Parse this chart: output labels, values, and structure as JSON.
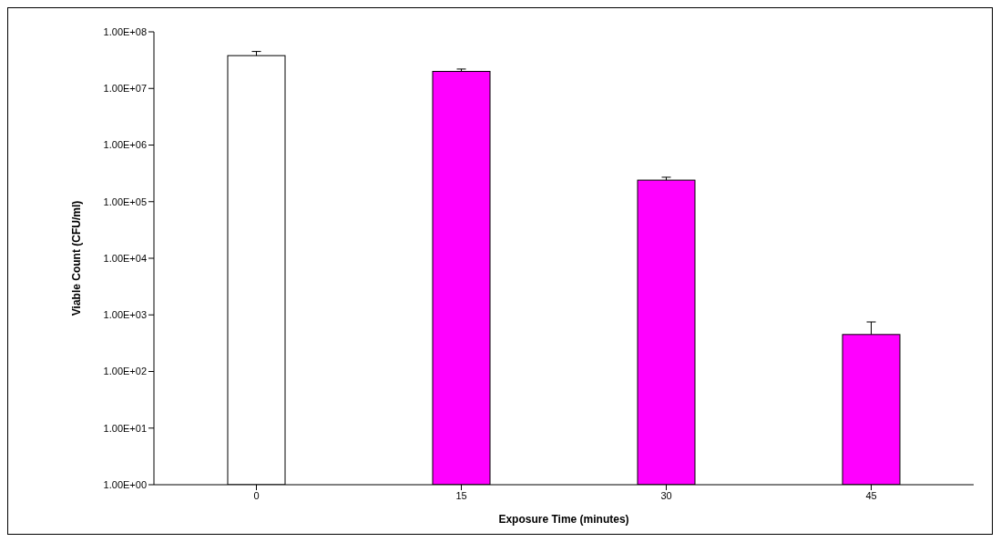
{
  "chart_data": {
    "type": "bar",
    "xlabel": "Exposure Time (minutes)",
    "ylabel": "Viable Count (CFU/ml)",
    "categories": [
      "0",
      "15",
      "30",
      "45"
    ],
    "values": [
      38000000,
      20000000,
      240000,
      450
    ],
    "errors": [
      7000000,
      2000000,
      30000,
      300
    ],
    "colors": [
      "#ffffff",
      "#ff00ff",
      "#ff00ff",
      "#ff00ff"
    ],
    "log": true,
    "ylim": [
      1,
      100000000
    ],
    "yticks": [
      {
        "value": 1,
        "label": "1.00E+00"
      },
      {
        "value": 10,
        "label": "1.00E+01"
      },
      {
        "value": 100,
        "label": "1.00E+02"
      },
      {
        "value": 1000,
        "label": "1.00E+03"
      },
      {
        "value": 10000,
        "label": "1.00E+04"
      },
      {
        "value": 100000,
        "label": "1.00E+05"
      },
      {
        "value": 1000000,
        "label": "1.00E+06"
      },
      {
        "value": 10000000,
        "label": "1.00E+07"
      },
      {
        "value": 100000000,
        "label": "1.00E+08"
      }
    ],
    "grid": false,
    "legend": false
  }
}
